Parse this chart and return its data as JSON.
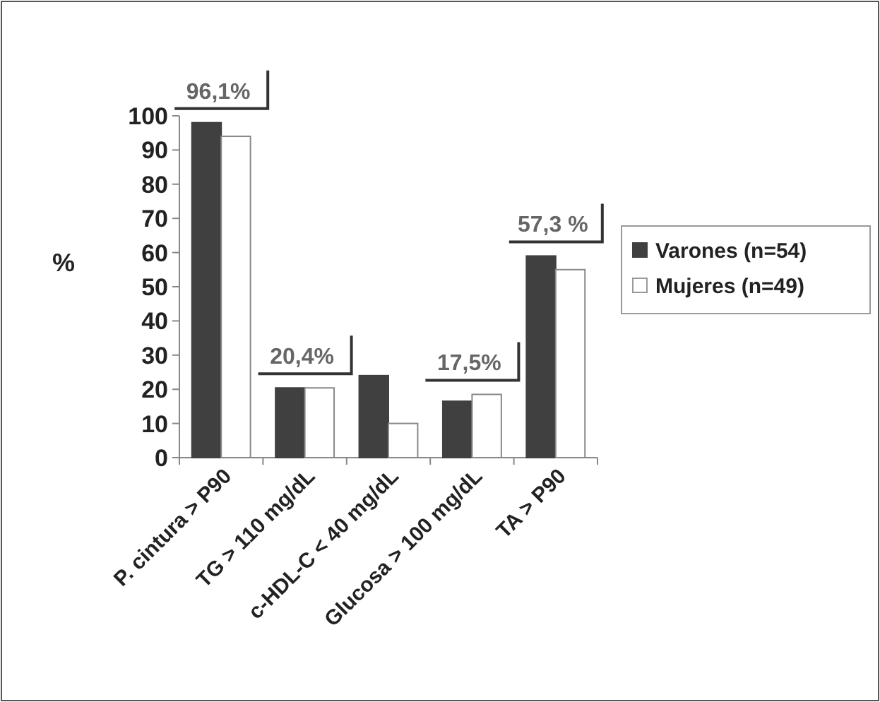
{
  "chart_data": {
    "type": "bar",
    "ylabel": "%",
    "categories": [
      "P. cintura > P90",
      "TG > 110 mg/dL",
      "c-HDL-C < 40 mg/dL",
      "Glucosa > 100 mg/dL",
      "TA > P90"
    ],
    "series": [
      {
        "name": "Varones (n=54)",
        "color": "#404040",
        "values": [
          98,
          20.4,
          24,
          16.5,
          59
        ]
      },
      {
        "name": "Mujeres (n=49)",
        "color": "#ffffff",
        "values": [
          94,
          20.4,
          10,
          18.5,
          55
        ]
      }
    ],
    "ylim": [
      0,
      100
    ],
    "yticks": [
      0,
      10,
      20,
      30,
      40,
      50,
      60,
      70,
      80,
      90,
      100
    ],
    "grid": false,
    "legend": "right",
    "annotations": [
      "96,1%",
      "20,4%",
      "17,5%",
      "57,3 %"
    ]
  }
}
